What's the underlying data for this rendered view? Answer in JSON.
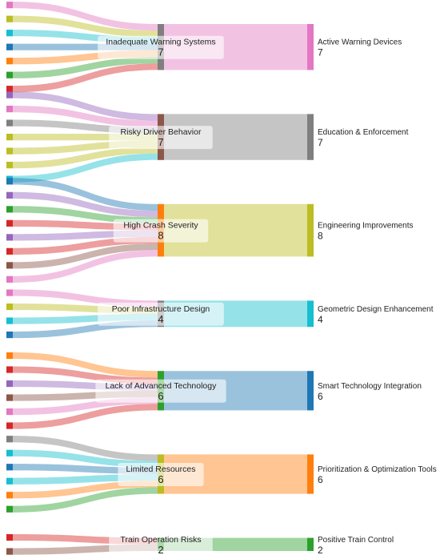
{
  "chart_data": {
    "type": "sankey",
    "title": "",
    "colors": [
      "#e377c2",
      "#7f7f7f",
      "#bcbd22",
      "#17becf",
      "#1f77b4",
      "#ff7f0e",
      "#2ca02c",
      "#d62728",
      "#9467bd",
      "#8c564b"
    ],
    "groups": [
      {
        "source": "Inadequate Warning Systems",
        "source_value": "7",
        "source_color": "#7f7f7f",
        "target": "Active Warning Devices",
        "target_value": "7",
        "target_color": "#e377c2",
        "inputs": [
          "#e377c2",
          "#bcbd22",
          "#17becf",
          "#1f77b4",
          "#ff7f0e",
          "#2ca02c",
          "#d62728"
        ]
      },
      {
        "source": "Risky Driver Behavior",
        "source_value": "7",
        "source_color": "#8c564b",
        "target": "Education & Enforcement",
        "target_value": "7",
        "target_color": "#7f7f7f",
        "inputs": [
          "#9467bd",
          "#e377c2",
          "#7f7f7f",
          "#bcbd22",
          "#bcbd22",
          "#bcbd22",
          "#17becf"
        ]
      },
      {
        "source": "High Crash Severity",
        "source_value": "8",
        "source_color": "#ff7f0e",
        "target": "Engineering Improvements",
        "target_value": "8",
        "target_color": "#bcbd22",
        "inputs": [
          "#1f77b4",
          "#9467bd",
          "#2ca02c",
          "#d62728",
          "#9467bd",
          "#d62728",
          "#8c564b",
          "#e377c2"
        ]
      },
      {
        "source": "Poor Infrastructure Design",
        "source_value": "4",
        "source_color": "#7f7f7f",
        "target": "Geometric Design Enhancement",
        "target_value": "4",
        "target_color": "#17becf",
        "inputs": [
          "#e377c2",
          "#bcbd22",
          "#17becf",
          "#1f77b4"
        ]
      },
      {
        "source": "Lack of Advanced Technology",
        "source_value": "6",
        "source_color": "#2ca02c",
        "target": "Smart Technology Integration",
        "target_value": "6",
        "target_color": "#1f77b4",
        "inputs": [
          "#ff7f0e",
          "#d62728",
          "#9467bd",
          "#8c564b",
          "#e377c2",
          "#d62728"
        ]
      },
      {
        "source": "Limited Resources",
        "source_value": "6",
        "source_color": "#bcbd22",
        "target": "Prioritization & Optimization Tools",
        "target_value": "6",
        "target_color": "#ff7f0e",
        "inputs": [
          "#7f7f7f",
          "#17becf",
          "#1f77b4",
          "#17becf",
          "#ff7f0e",
          "#2ca02c"
        ]
      },
      {
        "source": "Train Operation Risks",
        "source_value": "2",
        "source_color": "#2ca02c",
        "target": "Positive Train Control",
        "target_value": "2",
        "target_color": "#2ca02c",
        "inputs": [
          "#d62728",
          "#8c564b"
        ]
      }
    ]
  }
}
